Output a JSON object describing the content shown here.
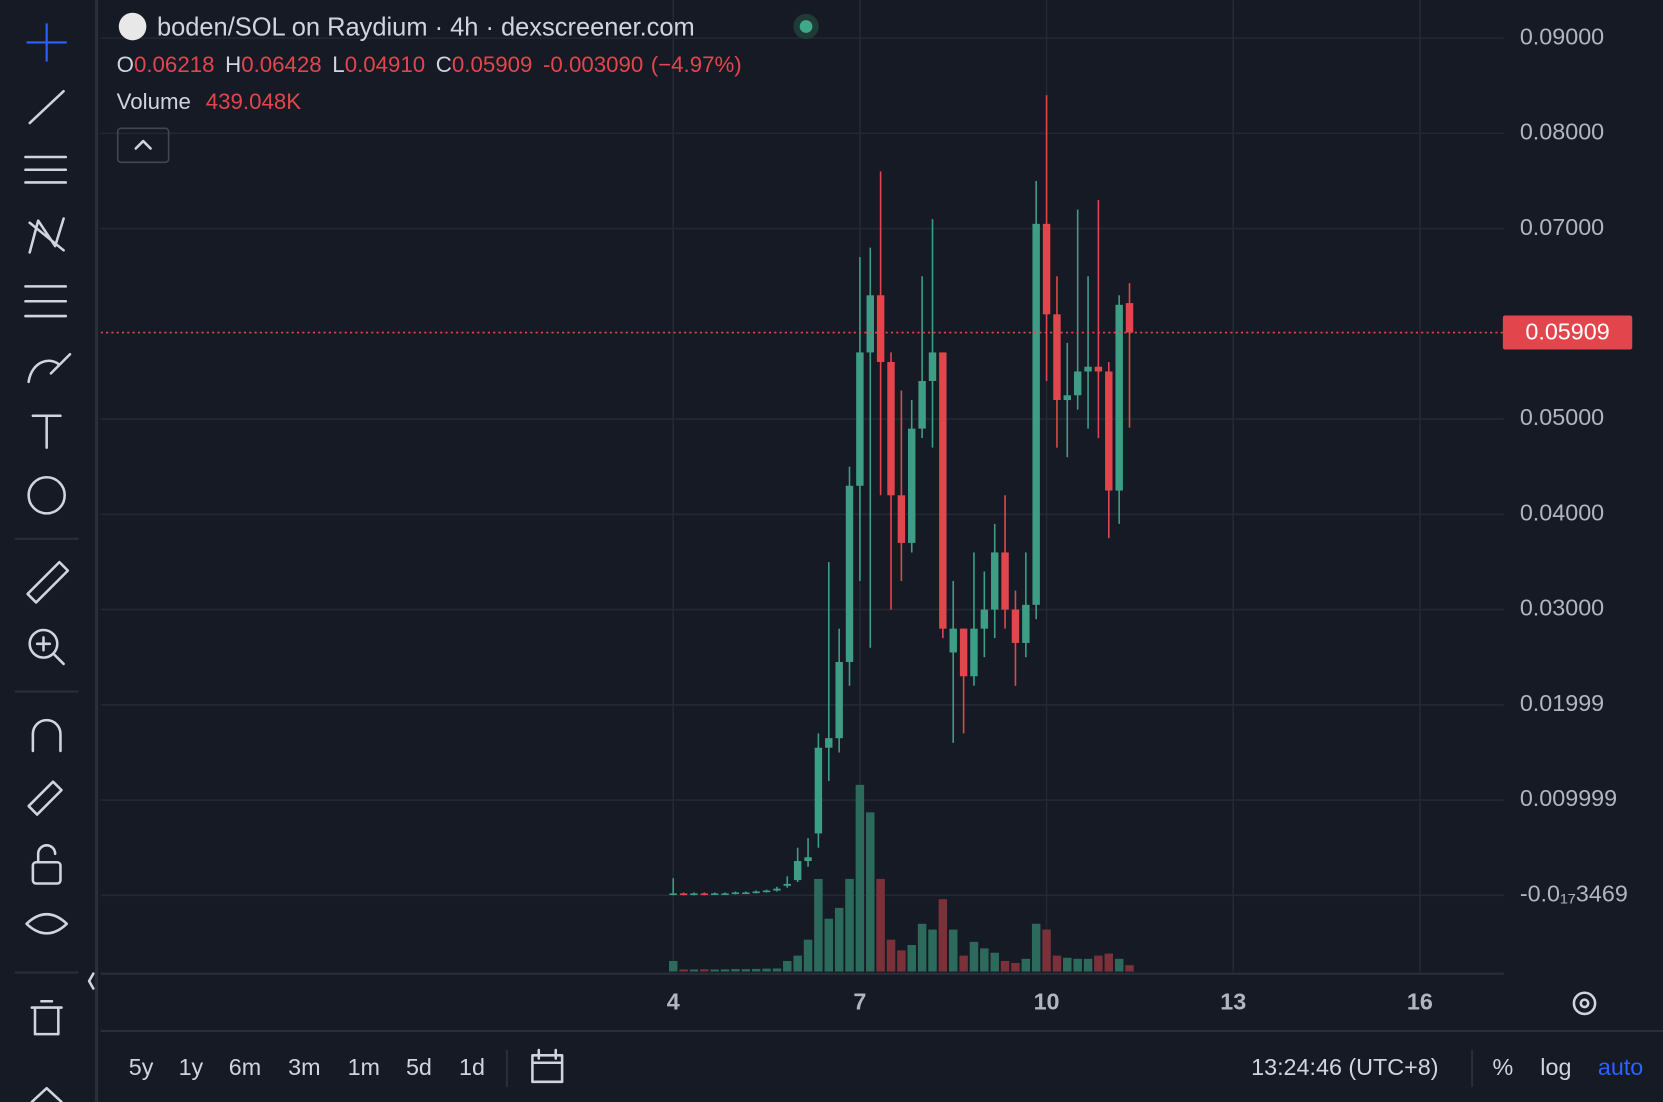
{
  "header": {
    "title": "boden/SOL on Raydium · 4h · dexscreener.com"
  },
  "legend": {
    "o": "O",
    "h": "H",
    "l": "L",
    "c": "C",
    "low_value": "0.04910",
    "change": "-0.003090",
    "change_pct": "(−4.97%)",
    "volume": "Volume",
    "volume_value": "439.048K"
  },
  "chart_data": {
    "type": "candlestick",
    "x": [
      4,
      4.167,
      4.333,
      4.5,
      4.667,
      4.833,
      5,
      5.167,
      5.333,
      5.5,
      5.667,
      5.833,
      6,
      6.167,
      6.333,
      6.5,
      6.667,
      6.833,
      7,
      7.167,
      7.333,
      7.5,
      7.667,
      7.833,
      8,
      8.167,
      8.333,
      8.5,
      8.667,
      8.833,
      9,
      9.167,
      9.333,
      9.5,
      9.667,
      9.833,
      10,
      10.167,
      10.333,
      10.5,
      10.667,
      10.833,
      11,
      11.167,
      11.333
    ],
    "open": [
      0.0001,
      0.0002,
      0.0001,
      0.0002,
      0.0001,
      0.0002,
      0.0002,
      0.0003,
      0.0003,
      0.0004,
      0.0005,
      0.001,
      0.0016,
      0.0036,
      0.0065,
      0.0155,
      0.0165,
      0.0245,
      0.043,
      0.057,
      0.063,
      0.056,
      0.042,
      0.037,
      0.049,
      0.054,
      0.057,
      0.0255,
      0.028,
      0.023,
      0.028,
      0.03,
      0.036,
      0.03,
      0.0265,
      0.0305,
      0.0705,
      0.061,
      0.052,
      0.0525,
      0.055,
      0.0555,
      0.055,
      0.0425,
      0.06218
    ],
    "high": [
      0.0018,
      0.0003,
      0.0003,
      0.0003,
      0.0003,
      0.0003,
      0.0004,
      0.0004,
      0.0005,
      0.0006,
      0.0009,
      0.002,
      0.005,
      0.006,
      0.017,
      0.035,
      0.028,
      0.045,
      0.067,
      0.068,
      0.076,
      0.057,
      0.053,
      0.052,
      0.065,
      0.071,
      0.057,
      0.033,
      0.028,
      0.036,
      0.034,
      0.039,
      0.042,
      0.032,
      0.036,
      0.075,
      0.084,
      0.065,
      0.058,
      0.072,
      0.065,
      0.073,
      0.056,
      0.063,
      0.06428
    ],
    "low": [
      0,
      0,
      0,
      0,
      0.0001,
      0.0001,
      0.0001,
      0.0002,
      0.0002,
      0.0003,
      0.0004,
      0.0008,
      0.0014,
      0.003,
      0.005,
      0.012,
      0.015,
      0.022,
      0.033,
      0.026,
      0.042,
      0.03,
      0.033,
      0.036,
      0.048,
      0.047,
      0.027,
      0.016,
      0.017,
      0.022,
      0.025,
      0.027,
      0.028,
      0.022,
      0.025,
      0.029,
      0.054,
      0.047,
      0.046,
      0.051,
      0.049,
      0.048,
      0.0375,
      0.039,
      0.0491
    ],
    "close": [
      0.0002,
      0.0001,
      0.0002,
      0.0001,
      0.0002,
      0.0002,
      0.0003,
      0.0003,
      0.0004,
      0.0005,
      0.0007,
      0.0012,
      0.0036,
      0.004,
      0.0155,
      0.0165,
      0.0245,
      0.043,
      0.057,
      0.063,
      0.056,
      0.042,
      0.037,
      0.049,
      0.054,
      0.057,
      0.028,
      0.028,
      0.023,
      0.028,
      0.03,
      0.036,
      0.03,
      0.0265,
      0.0305,
      0.0705,
      0.061,
      0.052,
      0.0525,
      0.055,
      0.0555,
      0.055,
      0.0425,
      0.062,
      0.05909
    ],
    "volume": [
      730000,
      150000,
      140000,
      160000,
      140000,
      150000,
      170000,
      160000,
      180000,
      200000,
      210000,
      730000,
      1100000,
      2200000,
      6400000,
      3650000,
      4400000,
      6400000,
      12900000,
      11000000,
      6400000,
      2200000,
      1460000,
      1830000,
      3300000,
      2900000,
      5000000,
      2900000,
      1100000,
      2050000,
      1600000,
      1300000,
      730000,
      590000,
      880000,
      3300000,
      2900000,
      1100000,
      950000,
      880000,
      880000,
      1100000,
      1240000,
      880000,
      439048
    ],
    "up_color": "#3e9e85",
    "down_color": "#e2464c",
    "volume_up_color": "#2c6b5c",
    "volume_down_color": "#7b3139",
    "xlim": [
      -5.2,
      17.35
    ],
    "xticks": [
      4,
      7,
      10,
      13,
      16
    ],
    "ylim": [
      -0.008,
      0.094
    ],
    "yticks": [
      {
        "value": 0.09,
        "label": "0.09000"
      },
      {
        "value": 0.08,
        "label": "0.08000"
      },
      {
        "value": 0.07,
        "label": "0.07000"
      },
      {
        "value": 0.05,
        "label": "0.05000"
      },
      {
        "value": 0.04,
        "label": "0.04000"
      },
      {
        "value": 0.03,
        "label": "0.03000"
      },
      {
        "value": 0.01999,
        "label": "0.01999"
      },
      {
        "value": 0.009999,
        "label": "0.009999"
      },
      {
        "value": -3.469e-18,
        "label": "-0.0₁₇3469"
      }
    ],
    "grid": true
  },
  "toolbar": {
    "ranges": [
      "5y",
      "1y",
      "6m",
      "3m",
      "1m",
      "5d",
      "1d"
    ],
    "time": "13:24:46 (UTC+8)",
    "percent": "%",
    "log": "log",
    "auto": "auto"
  }
}
